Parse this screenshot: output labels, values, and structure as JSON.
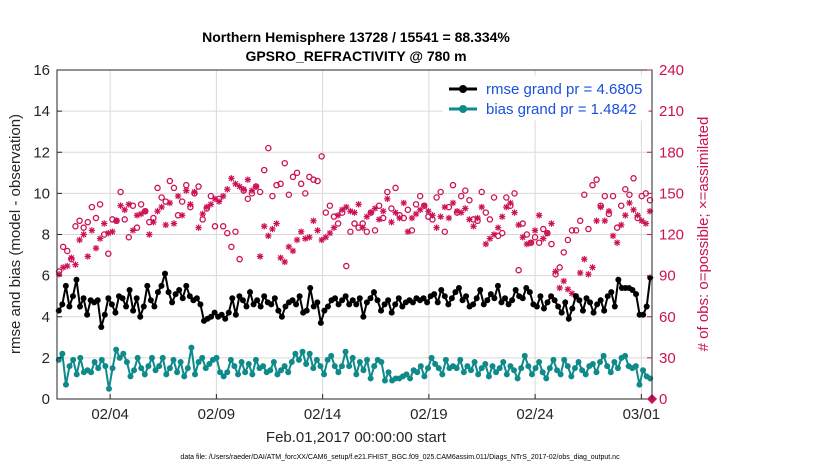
{
  "colors": {
    "rmse": "#000000",
    "bias": "#0f8a8a",
    "obs": "#cc1155",
    "legend_text": "#1a50e0"
  },
  "chart_data": {
    "type": "line",
    "title": "Northern Hemisphere 13728 / 15541 = 88.334%",
    "subtitle": "GPSRO_REFRACTIVITY @ 780 m",
    "xlabel": "Feb.01,2017 00:00:00 start",
    "ylabel": "rmse and bias (model - observation)",
    "y2label": "# of obs: o=possible; ×=assimilated",
    "footnote": "data file: /Users/raeder/DAI/ATM_forcXX/CAM6_setup/f.e21.FHIST_BGC.f09_025.CAM6assim.011/Diags_NTrS_2017-02/obs_diag_output.nc",
    "x_unit": "days since start",
    "xlim": [
      0,
      28
    ],
    "ylim": [
      0,
      16
    ],
    "y2lim": [
      0,
      240
    ],
    "x_ticks": [
      {
        "value": 2.5,
        "label": "02/04"
      },
      {
        "value": 7.5,
        "label": "02/09"
      },
      {
        "value": 12.5,
        "label": "02/14"
      },
      {
        "value": 17.5,
        "label": "02/19"
      },
      {
        "value": 22.5,
        "label": "02/24"
      },
      {
        "value": 27.5,
        "label": "03/01"
      }
    ],
    "y_ticks": [
      0,
      2,
      4,
      6,
      8,
      10,
      12,
      14,
      16
    ],
    "y2_ticks": [
      0,
      30,
      60,
      90,
      120,
      150,
      180,
      210,
      240
    ],
    "grid": true,
    "legend_position": "top-right",
    "legend": [
      {
        "series": "rmse",
        "label": "rmse grand pr = 4.6805"
      },
      {
        "series": "bias",
        "label": "bias grand pr = 1.4842"
      }
    ],
    "series": [
      {
        "name": "rmse",
        "axis": "left",
        "values": [
          4.3,
          4.6,
          5.5,
          4.5,
          5.0,
          5.8,
          4.5,
          4.9,
          4.1,
          4.8,
          4.7,
          4.8,
          3.5,
          4.1,
          4.9,
          4.6,
          4.2,
          5.0,
          4.9,
          4.5,
          5.3,
          4.3,
          4.9,
          4.0,
          4.5,
          5.5,
          4.8,
          4.5,
          5.2,
          5.5,
          6.1,
          5.2,
          4.7,
          5.1,
          5.3,
          4.9,
          5.5,
          5.0,
          4.8,
          4.9,
          4.6,
          3.8,
          3.9,
          4.0,
          4.2,
          4.0,
          4.1,
          3.9,
          4.2,
          4.9,
          4.1,
          5.0,
          4.8,
          4.5,
          5.2,
          4.6,
          4.8,
          4.5,
          5.0,
          4.7,
          4.6,
          4.9,
          4.3,
          4.0,
          4.5,
          4.7,
          4.8,
          4.6,
          5.0,
          4.2,
          4.3,
          5.4,
          4.5,
          4.7,
          3.7,
          4.3,
          4.5,
          4.8,
          4.9,
          4.6,
          4.8,
          5.0,
          4.6,
          4.8,
          4.6,
          4.9,
          4.0,
          4.7,
          4.9,
          5.2,
          4.8,
          4.3,
          4.6,
          4.8,
          4.2,
          4.6,
          4.9,
          4.5,
          4.7,
          4.8,
          4.7,
          4.9,
          4.8,
          4.9,
          4.7,
          5.0,
          5.1,
          4.7,
          5.3,
          5.0,
          4.6,
          4.9,
          5.2,
          5.4,
          4.8,
          5.0,
          4.5,
          4.6,
          4.9,
          5.3,
          4.6,
          4.8,
          5.1,
          4.9,
          5.5,
          4.7,
          4.9,
          4.6,
          4.8,
          5.3,
          5.0,
          4.9,
          5.4,
          5.2,
          4.6,
          4.5,
          5.0,
          4.4,
          4.7,
          5.0,
          4.8,
          4.5,
          4.2,
          4.7,
          3.9,
          4.4,
          5.0,
          4.8,
          4.3,
          4.9,
          4.7,
          4.2,
          4.6,
          4.8,
          4.3,
          5.0,
          5.2,
          4.5,
          5.8,
          5.4,
          5.4,
          5.4,
          5.3,
          5.1,
          4.1,
          4.1,
          4.5,
          5.9
        ]
      },
      {
        "name": "bias",
        "axis": "left",
        "values": [
          1.9,
          2.2,
          0.7,
          1.6,
          1.9,
          1.2,
          2.0,
          1.3,
          1.4,
          1.3,
          1.8,
          1.5,
          1.9,
          1.6,
          0.5,
          1.5,
          2.4,
          2.0,
          2.2,
          1.8,
          1.1,
          1.4,
          2.0,
          1.5,
          1.2,
          1.6,
          2.0,
          1.4,
          1.6,
          2.0,
          1.2,
          1.5,
          1.9,
          1.3,
          1.8,
          1.1,
          1.5,
          2.5,
          1.2,
          1.8,
          2.0,
          1.5,
          1.7,
          1.9,
          2.0,
          1.3,
          1.1,
          1.3,
          1.9,
          1.6,
          1.2,
          1.8,
          1.3,
          1.7,
          1.2,
          1.9,
          1.5,
          1.6,
          1.3,
          1.4,
          1.8,
          1.2,
          1.4,
          1.6,
          1.3,
          1.8,
          2.2,
          1.9,
          2.3,
          1.7,
          2.2,
          1.5,
          1.9,
          1.6,
          1.2,
          1.9,
          2.1,
          1.6,
          1.3,
          1.6,
          2.3,
          1.6,
          2.0,
          1.2,
          1.8,
          1.4,
          1.9,
          1.0,
          1.6,
          1.9,
          1.8,
          0.9,
          1.3,
          0.9,
          1.0,
          1.0,
          1.1,
          1.2,
          1.0,
          1.4,
          1.3,
          1.6,
          1.1,
          1.5,
          2.0,
          1.7,
          1.5,
          1.2,
          1.9,
          1.5,
          1.6,
          1.5,
          1.9,
          1.3,
          1.6,
          1.4,
          1.8,
          1.2,
          1.5,
          1.7,
          1.1,
          1.6,
          1.3,
          1.5,
          1.8,
          1.2,
          1.6,
          1.4,
          1.0,
          1.5,
          2.1,
          1.6,
          1.2,
          1.5,
          1.8,
          1.3,
          1.0,
          1.5,
          1.9,
          1.4,
          1.2,
          1.9,
          1.6,
          1.1,
          1.5,
          1.8,
          1.4,
          1.2,
          1.6,
          1.7,
          1.3,
          1.8,
          2.1,
          1.6,
          1.3,
          1.8,
          1.5,
          2.0,
          2.1,
          1.6,
          1.5,
          1.6,
          0.7,
          1.4,
          1.1,
          1.0
        ]
      },
      {
        "name": "possible",
        "axis": "right",
        "values": [
          93,
          111,
          108,
          102,
          126,
          130,
          125,
          129,
          140,
          132,
          142,
          120,
          106,
          131,
          130,
          151,
          131,
          118,
          141,
          125,
          142,
          137,
          129,
          132,
          154,
          147,
          144,
          159,
          154,
          134,
          144,
          156,
          140,
          150,
          155,
          131,
          139,
          148,
          126,
          146,
          126,
          121,
          111,
          122,
          102,
          152,
          146,
          150,
          155,
          151,
          167,
          183,
          148,
          156,
          157,
          172,
          149,
          162,
          165,
          157,
          150,
          162,
          160,
          159,
          177,
          136,
          141,
          133,
          128,
          136,
          97,
          122,
          128,
          125,
          128,
          122,
          136,
          123,
          141,
          132,
          151,
          139,
          154,
          134,
          132,
          138,
          123,
          142,
          148,
          141,
          133,
          131,
          147,
          151,
          122,
          140,
          156,
          136,
          148,
          152,
          145,
          131,
          130,
          151,
          136,
          131,
          147,
          119,
          121,
          147,
          141,
          150,
          94,
          128,
          120,
          114,
          118,
          114,
          124,
          121,
          113,
          91,
          96,
          107,
          116,
          123,
          123,
          130,
          149,
          124,
          156,
          160,
          141,
          148,
          135,
          148,
          125,
          141,
          153,
          149,
          161,
          132,
          148,
          150,
          145
        ]
      },
      {
        "name": "assimilated",
        "axis": "right",
        "values": [
          91,
          96,
          97,
          103,
          98,
          116,
          120,
          104,
          123,
          110,
          117,
          128,
          121,
          122,
          130,
          141,
          138,
          142,
          123,
          134,
          135,
          137,
          120,
          129,
          137,
          140,
          127,
          143,
          128,
          148,
          134,
          152,
          142,
          151,
          125,
          135,
          140,
          142,
          146,
          144,
          148,
          153,
          161,
          157,
          155,
          153,
          160,
          152,
          155,
          104,
          126,
          119,
          124,
          128,
          103,
          100,
          111,
          108,
          116,
          122,
          117,
          118,
          130,
          123,
          116,
          118,
          121,
          125,
          134,
          138,
          140,
          137,
          136,
          142,
          125,
          133,
          136,
          139,
          131,
          137,
          146,
          129,
          136,
          132,
          143,
          122,
          132,
          135,
          138,
          141,
          137,
          134,
          125,
          133,
          140,
          132,
          143,
          137,
          136,
          139,
          131,
          126,
          132,
          140,
          113,
          117,
          120,
          125,
          133,
          140,
          143,
          136,
          127,
          118,
          113,
          114,
          123,
          134,
          117,
          121,
          128,
          93,
          81,
          86,
          80,
          77,
          75,
          92,
          102,
          91,
          96,
          130,
          140,
          130,
          137,
          119,
          114,
          127,
          134,
          143,
          138,
          134,
          130,
          128,
          137
        ]
      }
    ]
  }
}
